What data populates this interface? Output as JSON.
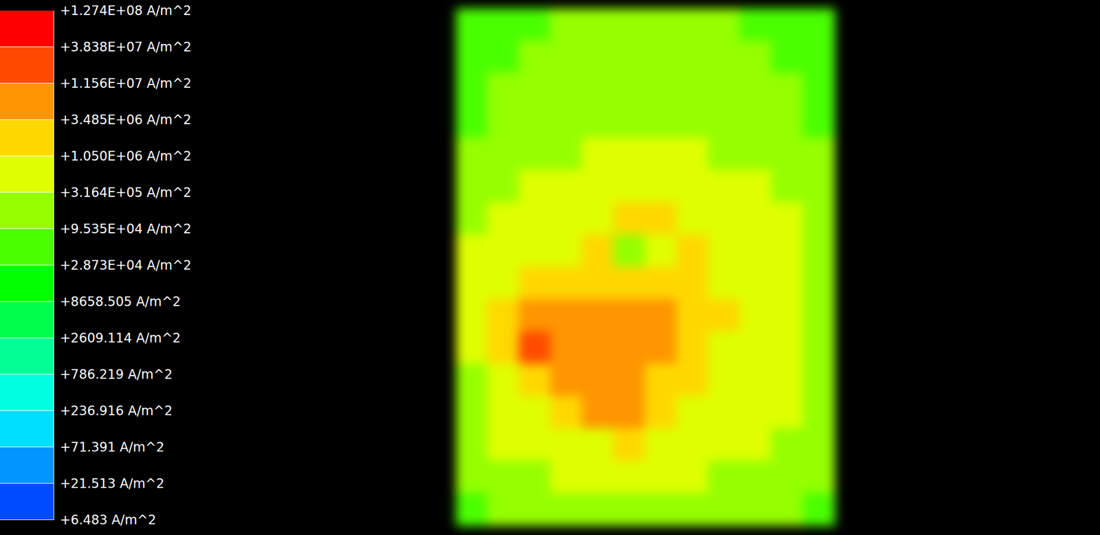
{
  "chart_data": {
    "type": "heatmap",
    "log": true,
    "tick_labels": false,
    "cells": [
      [
        30000,
        60000,
        80000,
        100000,
        120000,
        100000,
        100000,
        120000,
        100000,
        80000,
        60000,
        30000
      ],
      [
        50000,
        80000,
        100000,
        120000,
        150000,
        150000,
        150000,
        150000,
        120000,
        100000,
        80000,
        50000
      ],
      [
        60000,
        100000,
        120000,
        150000,
        200000,
        200000,
        200000,
        200000,
        150000,
        120000,
        100000,
        60000
      ],
      [
        80000,
        120000,
        150000,
        200000,
        250000,
        300000,
        300000,
        250000,
        200000,
        150000,
        120000,
        80000
      ],
      [
        150000,
        200000,
        250000,
        300000,
        400000,
        500000,
        500000,
        400000,
        300000,
        250000,
        200000,
        150000
      ],
      [
        200000,
        300000,
        400000,
        500000,
        700000,
        800000,
        800000,
        600000,
        500000,
        400000,
        300000,
        200000
      ],
      [
        300000,
        500000,
        600000,
        800000,
        1000000,
        1200000,
        1200000,
        1000000,
        700000,
        500000,
        400000,
        250000
      ],
      [
        400000,
        600000,
        800000,
        1000000,
        1500000,
        200000,
        800000,
        1200000,
        800000,
        600000,
        500000,
        300000
      ],
      [
        400000,
        800000,
        1200000,
        2000000,
        2500000,
        3000000,
        2500000,
        1500000,
        1000000,
        700000,
        500000,
        300000
      ],
      [
        400000,
        1500000,
        4000000,
        5000000,
        5000000,
        6000000,
        4000000,
        2000000,
        1200000,
        800000,
        500000,
        300000
      ],
      [
        400000,
        2000000,
        20000000,
        6000000,
        5000000,
        7000000,
        4000000,
        1500000,
        1000000,
        700000,
        500000,
        300000
      ],
      [
        300000,
        1000000,
        3000000,
        4000000,
        8000000,
        6000000,
        3000000,
        1200000,
        900000,
        700000,
        500000,
        300000
      ],
      [
        250000,
        600000,
        800000,
        1200000,
        4000000,
        5000000,
        1500000,
        1000000,
        800000,
        600000,
        400000,
        250000
      ],
      [
        200000,
        400000,
        500000,
        700000,
        1000000,
        1200000,
        1000000,
        800000,
        600000,
        500000,
        300000,
        200000
      ],
      [
        100000,
        200000,
        300000,
        400000,
        500000,
        600000,
        500000,
        400000,
        300000,
        250000,
        200000,
        100000
      ],
      [
        60000,
        100000,
        150000,
        200000,
        250000,
        300000,
        250000,
        200000,
        150000,
        120000,
        100000,
        60000
      ]
    ],
    "colorbar": {
      "range": [
        6.483,
        127400000
      ],
      "ticks": [
        {
          "value": 127400000,
          "label": "+1.274E+08 A/m^2"
        },
        {
          "value": 38380000,
          "label": "+3.838E+07 A/m^2"
        },
        {
          "value": 11560000,
          "label": "+1.156E+07 A/m^2"
        },
        {
          "value": 3485000,
          "label": "+3.485E+06 A/m^2"
        },
        {
          "value": 1050000,
          "label": "+1.050E+06 A/m^2"
        },
        {
          "value": 316400,
          "label": "+3.164E+05 A/m^2"
        },
        {
          "value": 95350,
          "label": "+9.535E+04 A/m^2"
        },
        {
          "value": 28730,
          "label": "+2.873E+04 A/m^2"
        },
        {
          "value": 8658.505,
          "label": "+8658.505 A/m^2"
        },
        {
          "value": 2609.114,
          "label": "+2609.114 A/m^2"
        },
        {
          "value": 786.219,
          "label": "+786.219 A/m^2"
        },
        {
          "value": 236.916,
          "label": "+236.916 A/m^2"
        },
        {
          "value": 71.391,
          "label": "+71.391 A/m^2"
        },
        {
          "value": 21.513,
          "label": "+21.513 A/m^2"
        },
        {
          "value": 6.483,
          "label": "+6.483 A/m^2"
        }
      ],
      "colors": [
        "#ff0000",
        "#ff4a00",
        "#ff9500",
        "#ffd800",
        "#dfff00",
        "#95ff00",
        "#4aff00",
        "#00ff00",
        "#00ff4a",
        "#00ff95",
        "#00ffdf",
        "#00dfff",
        "#0095ff",
        "#004aff"
      ]
    }
  }
}
